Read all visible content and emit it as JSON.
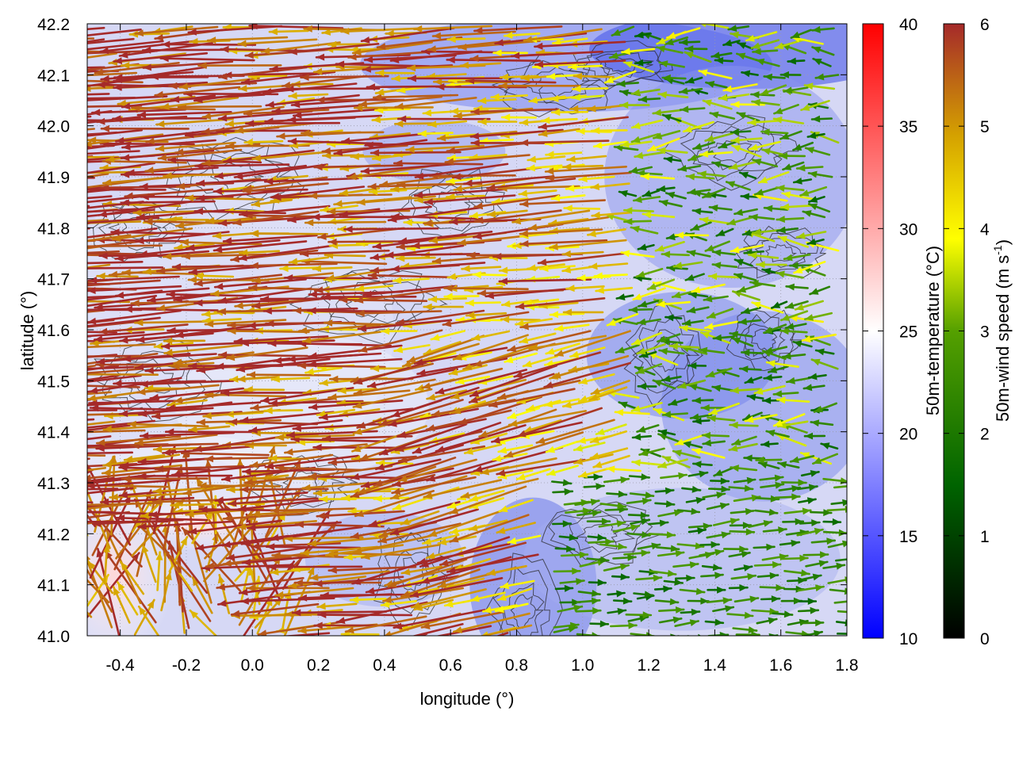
{
  "chart_data": {
    "type": "vector-field",
    "xlabel": "longitude (°)",
    "ylabel": "latitude (°)",
    "xlim": [
      -0.5,
      1.8
    ],
    "ylim": [
      41.0,
      42.2
    ],
    "x_ticks": [
      "-0.4",
      "-0.2",
      "0.0",
      "0.2",
      "0.4",
      "0.6",
      "0.8",
      "1.0",
      "1.2",
      "1.4",
      "1.6",
      "1.8"
    ],
    "y_ticks": [
      "42.2",
      "42.1",
      "42.0",
      "41.9",
      "41.8",
      "41.7",
      "41.6",
      "41.5",
      "41.4",
      "41.3",
      "41.2",
      "41.1",
      "41.0"
    ],
    "grid": true,
    "background_field": "50m-temperature",
    "contours": "terrain elevation (dark grey lines)",
    "colorbars": [
      {
        "label": "50m-temperature (°C)",
        "range": [
          10,
          40
        ],
        "ticks": [
          "40",
          "35",
          "30",
          "25",
          "20",
          "15",
          "10"
        ],
        "colors": [
          "#0000ff",
          "#ffffff",
          "#ff0000"
        ]
      },
      {
        "label_main": "50m-wind speed (m s",
        "label_sup": "-1",
        "label_end": ")",
        "range": [
          0,
          6
        ],
        "ticks": [
          "6",
          "5",
          "4",
          "3",
          "2",
          "1",
          "0"
        ],
        "colors": [
          "#000000",
          "#006400",
          "#55a000",
          "#ffff00",
          "#d4a000",
          "#a52a2a"
        ]
      }
    ],
    "wind_regimes": [
      {
        "region": "west of 0.8°E",
        "direction": "from east (westward)",
        "speed": "~6 m s-1"
      },
      {
        "region": "south-east (lon > 0.9, lat < 41.3)",
        "direction": "from west (eastward)",
        "speed": "~2-3 m s-1"
      },
      {
        "region": "north-east (lon > 1.2, lat > 41.4)",
        "direction": "mostly westward",
        "speed": "~2-4 m s-1"
      }
    ]
  }
}
